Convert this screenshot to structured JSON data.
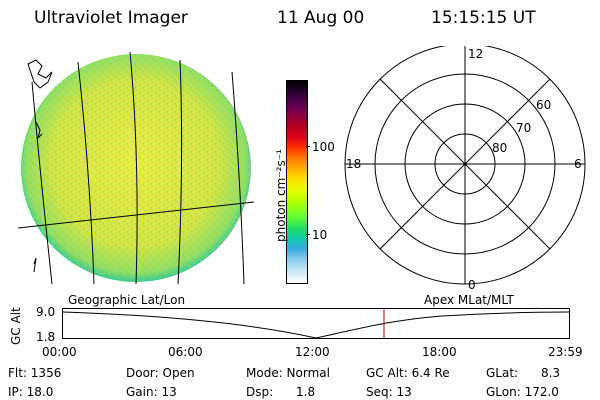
{
  "header": {
    "title": "Ultraviolet Imager",
    "date": "11 Aug 00",
    "time": "15:15:15 UT"
  },
  "colorbar": {
    "unit_label": "photon cm⁻²s⁻¹",
    "ticks": [
      "100",
      "10"
    ],
    "colors": [
      "#000000",
      "#2a0033",
      "#6a0055",
      "#b00020",
      "#e0001a",
      "#ff3300",
      "#ff7700",
      "#ffaa00",
      "#ffdd00",
      "#e8ff00",
      "#b0ff00",
      "#66ff33",
      "#22dd66",
      "#11ccaa",
      "#33aadd",
      "#88ccee",
      "#c8e8f2",
      "#ffffff"
    ]
  },
  "polar": {
    "mlt_labels": {
      "top": "12",
      "left": "18",
      "right": "6",
      "bottom": "0"
    },
    "lat_labels": [
      "60",
      "70",
      "80"
    ]
  },
  "strip": {
    "left_label": "Geographic Lat/Lon",
    "right_label": "Apex  MLat/MLT",
    "y_title": "GC Alt",
    "y_ticks": [
      "9.0",
      "1.8"
    ],
    "x_ticks": [
      "00:00",
      "06:00",
      "12:00",
      "18:00",
      "23:59"
    ],
    "marker_color": "#cc0000"
  },
  "info": {
    "flt": "Flt: 1356",
    "ip": "IP: 18.0",
    "door": "Door: Open",
    "gain": "Gain: 13",
    "mode": "Mode: Normal",
    "dsp": "Dsp:      1.8",
    "gcalt": "GC Alt: 6.4 Re",
    "seq": "Seq: 13",
    "glat": "GLat:      8.3",
    "glon": "GLon: 172.0"
  },
  "colors": {
    "earth_disk_base": "#c8e84a",
    "earth_disk_edge": "#33cc99",
    "grid_lines": "#000000"
  }
}
